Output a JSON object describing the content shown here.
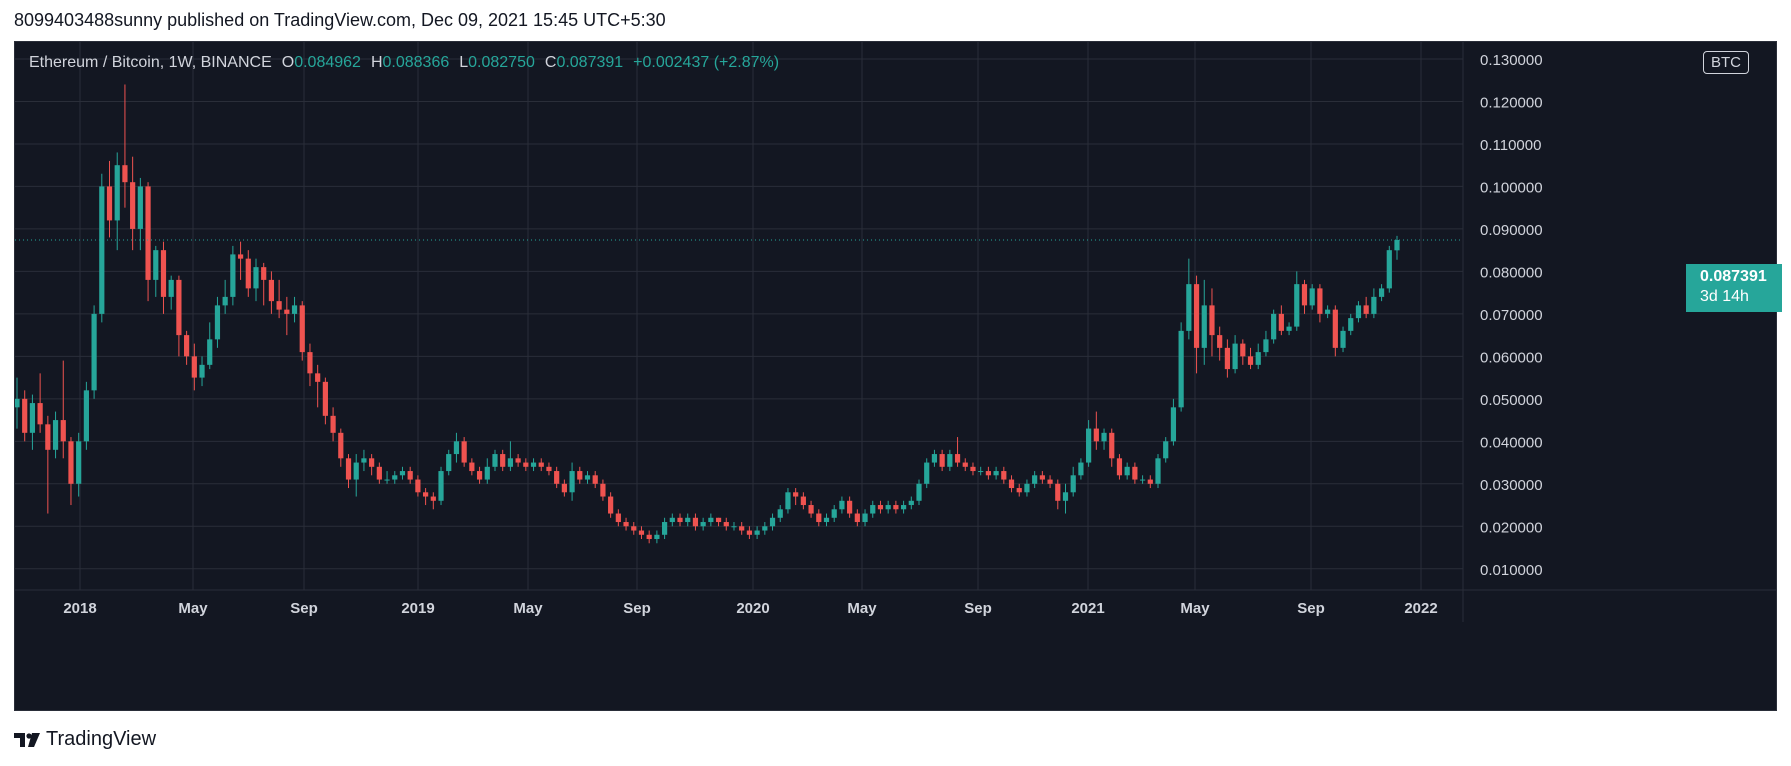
{
  "header": {
    "publish_line": "8099403488sunny published on TradingView.com, Dec 09, 2021 15:45 UTC+5:30"
  },
  "legend": {
    "symbol": "Ethereum / Bitcoin, 1W, BINANCE",
    "o_label": "O",
    "o_value": "0.084962",
    "h_label": "H",
    "h_value": "0.088366",
    "l_label": "L",
    "l_value": "0.082750",
    "c_label": "C",
    "c_value": "0.087391",
    "change": "+0.002437 (+2.87%)"
  },
  "currency_button": "BTC",
  "price_tag": {
    "price": "0.087391",
    "countdown": "3d 14h"
  },
  "footer": {
    "brand": "TradingView"
  },
  "colors": {
    "background": "#131722",
    "grid": "#2a2e39",
    "up": "#26a69a",
    "down": "#ef5350",
    "text": "#d1d4dc"
  },
  "chart_data": {
    "type": "candlestick",
    "title": "Ethereum / Bitcoin, 1W, BINANCE",
    "x_tick_labels": [
      "2018",
      "May",
      "Sep",
      "2019",
      "May",
      "Sep",
      "2020",
      "May",
      "Sep",
      "2021",
      "May",
      "Sep",
      "2022"
    ],
    "y_tick_labels": [
      "0.010000",
      "0.020000",
      "0.030000",
      "0.040000",
      "0.050000",
      "0.060000",
      "0.070000",
      "0.080000",
      "0.090000",
      "0.100000",
      "0.110000",
      "0.120000",
      "0.130000"
    ],
    "ylim": [
      0.005,
      0.134
    ],
    "last_price": 0.087391,
    "grid": true,
    "series": [
      {
        "interval": "1W",
        "points": [
          [
            0.048,
            0.05,
            0.043,
            0.055
          ],
          [
            0.05,
            0.042,
            0.04,
            0.052
          ],
          [
            0.042,
            0.049,
            0.038,
            0.051
          ],
          [
            0.049,
            0.044,
            0.042,
            0.056
          ],
          [
            0.044,
            0.038,
            0.023,
            0.046
          ],
          [
            0.038,
            0.045,
            0.036,
            0.047
          ],
          [
            0.045,
            0.04,
            0.036,
            0.059
          ],
          [
            0.04,
            0.03,
            0.025,
            0.041
          ],
          [
            0.03,
            0.04,
            0.027,
            0.042
          ],
          [
            0.04,
            0.052,
            0.038,
            0.054
          ],
          [
            0.052,
            0.07,
            0.05,
            0.072
          ],
          [
            0.07,
            0.1,
            0.068,
            0.103
          ],
          [
            0.1,
            0.092,
            0.088,
            0.106
          ],
          [
            0.092,
            0.105,
            0.085,
            0.108
          ],
          [
            0.105,
            0.101,
            0.095,
            0.124
          ],
          [
            0.101,
            0.09,
            0.085,
            0.107
          ],
          [
            0.09,
            0.1,
            0.085,
            0.102
          ],
          [
            0.1,
            0.078,
            0.073,
            0.101
          ],
          [
            0.078,
            0.085,
            0.074,
            0.086
          ],
          [
            0.085,
            0.074,
            0.07,
            0.087
          ],
          [
            0.074,
            0.078,
            0.071,
            0.079
          ],
          [
            0.078,
            0.065,
            0.06,
            0.079
          ],
          [
            0.065,
            0.06,
            0.058,
            0.066
          ],
          [
            0.06,
            0.055,
            0.052,
            0.063
          ],
          [
            0.055,
            0.058,
            0.053,
            0.06
          ],
          [
            0.058,
            0.064,
            0.057,
            0.068
          ],
          [
            0.064,
            0.072,
            0.062,
            0.074
          ],
          [
            0.072,
            0.074,
            0.07,
            0.078
          ],
          [
            0.074,
            0.084,
            0.072,
            0.086
          ],
          [
            0.084,
            0.083,
            0.078,
            0.087
          ],
          [
            0.083,
            0.076,
            0.074,
            0.085
          ],
          [
            0.076,
            0.081,
            0.073,
            0.083
          ],
          [
            0.081,
            0.078,
            0.072,
            0.082
          ],
          [
            0.078,
            0.073,
            0.07,
            0.08
          ],
          [
            0.073,
            0.071,
            0.069,
            0.078
          ],
          [
            0.071,
            0.07,
            0.065,
            0.074
          ],
          [
            0.07,
            0.072,
            0.068,
            0.074
          ],
          [
            0.072,
            0.061,
            0.059,
            0.073
          ],
          [
            0.061,
            0.056,
            0.053,
            0.063
          ],
          [
            0.056,
            0.054,
            0.048,
            0.058
          ],
          [
            0.054,
            0.046,
            0.044,
            0.055
          ],
          [
            0.046,
            0.042,
            0.04,
            0.048
          ],
          [
            0.042,
            0.036,
            0.034,
            0.043
          ],
          [
            0.036,
            0.031,
            0.029,
            0.037
          ],
          [
            0.031,
            0.035,
            0.027,
            0.037
          ],
          [
            0.035,
            0.036,
            0.033,
            0.038
          ],
          [
            0.036,
            0.034,
            0.032,
            0.037
          ],
          [
            0.034,
            0.031,
            0.03,
            0.035
          ],
          [
            0.031,
            0.031,
            0.03,
            0.033
          ],
          [
            0.031,
            0.032,
            0.03,
            0.033
          ],
          [
            0.032,
            0.033,
            0.031,
            0.034
          ],
          [
            0.033,
            0.031,
            0.03,
            0.034
          ],
          [
            0.031,
            0.028,
            0.027,
            0.032
          ],
          [
            0.028,
            0.027,
            0.025,
            0.029
          ],
          [
            0.027,
            0.026,
            0.024,
            0.028
          ],
          [
            0.026,
            0.033,
            0.025,
            0.034
          ],
          [
            0.033,
            0.037,
            0.032,
            0.038
          ],
          [
            0.037,
            0.04,
            0.035,
            0.042
          ],
          [
            0.04,
            0.035,
            0.034,
            0.041
          ],
          [
            0.035,
            0.033,
            0.032,
            0.036
          ],
          [
            0.033,
            0.031,
            0.03,
            0.034
          ],
          [
            0.031,
            0.034,
            0.03,
            0.036
          ],
          [
            0.034,
            0.037,
            0.033,
            0.038
          ],
          [
            0.037,
            0.034,
            0.033,
            0.038
          ],
          [
            0.034,
            0.036,
            0.033,
            0.04
          ],
          [
            0.036,
            0.035,
            0.034,
            0.037
          ],
          [
            0.035,
            0.034,
            0.033,
            0.036
          ],
          [
            0.034,
            0.035,
            0.033,
            0.036
          ],
          [
            0.035,
            0.034,
            0.033,
            0.036
          ],
          [
            0.034,
            0.033,
            0.032,
            0.035
          ],
          [
            0.033,
            0.03,
            0.029,
            0.034
          ],
          [
            0.03,
            0.028,
            0.027,
            0.031
          ],
          [
            0.028,
            0.033,
            0.026,
            0.035
          ],
          [
            0.033,
            0.031,
            0.03,
            0.034
          ],
          [
            0.031,
            0.032,
            0.03,
            0.033
          ],
          [
            0.032,
            0.03,
            0.029,
            0.033
          ],
          [
            0.03,
            0.027,
            0.026,
            0.031
          ],
          [
            0.027,
            0.023,
            0.022,
            0.028
          ],
          [
            0.023,
            0.021,
            0.02,
            0.024
          ],
          [
            0.021,
            0.02,
            0.019,
            0.022
          ],
          [
            0.02,
            0.019,
            0.018,
            0.021
          ],
          [
            0.019,
            0.018,
            0.017,
            0.02
          ],
          [
            0.018,
            0.017,
            0.016,
            0.019
          ],
          [
            0.017,
            0.018,
            0.016,
            0.019
          ],
          [
            0.018,
            0.021,
            0.017,
            0.022
          ],
          [
            0.021,
            0.022,
            0.02,
            0.023
          ],
          [
            0.022,
            0.021,
            0.02,
            0.023
          ],
          [
            0.021,
            0.022,
            0.02,
            0.023
          ],
          [
            0.022,
            0.02,
            0.019,
            0.023
          ],
          [
            0.02,
            0.021,
            0.019,
            0.022
          ],
          [
            0.021,
            0.022,
            0.02,
            0.023
          ],
          [
            0.022,
            0.021,
            0.02,
            0.022
          ],
          [
            0.021,
            0.02,
            0.019,
            0.022
          ],
          [
            0.02,
            0.02,
            0.019,
            0.021
          ],
          [
            0.02,
            0.019,
            0.018,
            0.021
          ],
          [
            0.019,
            0.018,
            0.017,
            0.02
          ],
          [
            0.018,
            0.019,
            0.017,
            0.02
          ],
          [
            0.019,
            0.02,
            0.018,
            0.021
          ],
          [
            0.02,
            0.022,
            0.019,
            0.023
          ],
          [
            0.022,
            0.024,
            0.021,
            0.025
          ],
          [
            0.024,
            0.028,
            0.023,
            0.029
          ],
          [
            0.028,
            0.027,
            0.025,
            0.029
          ],
          [
            0.027,
            0.025,
            0.024,
            0.028
          ],
          [
            0.025,
            0.023,
            0.022,
            0.026
          ],
          [
            0.023,
            0.021,
            0.02,
            0.024
          ],
          [
            0.021,
            0.022,
            0.02,
            0.023
          ],
          [
            0.022,
            0.024,
            0.021,
            0.025
          ],
          [
            0.024,
            0.026,
            0.023,
            0.027
          ],
          [
            0.026,
            0.023,
            0.022,
            0.027
          ],
          [
            0.023,
            0.021,
            0.02,
            0.024
          ],
          [
            0.021,
            0.023,
            0.02,
            0.024
          ],
          [
            0.023,
            0.025,
            0.022,
            0.026
          ],
          [
            0.025,
            0.024,
            0.023,
            0.026
          ],
          [
            0.024,
            0.025,
            0.023,
            0.026
          ],
          [
            0.025,
            0.024,
            0.023,
            0.026
          ],
          [
            0.024,
            0.025,
            0.023,
            0.026
          ],
          [
            0.025,
            0.026,
            0.024,
            0.027
          ],
          [
            0.026,
            0.03,
            0.025,
            0.031
          ],
          [
            0.03,
            0.035,
            0.029,
            0.036
          ],
          [
            0.035,
            0.037,
            0.034,
            0.038
          ],
          [
            0.037,
            0.034,
            0.033,
            0.038
          ],
          [
            0.034,
            0.037,
            0.033,
            0.038
          ],
          [
            0.037,
            0.035,
            0.034,
            0.041
          ],
          [
            0.035,
            0.034,
            0.033,
            0.036
          ],
          [
            0.034,
            0.033,
            0.032,
            0.035
          ],
          [
            0.033,
            0.033,
            0.032,
            0.034
          ],
          [
            0.033,
            0.032,
            0.031,
            0.034
          ],
          [
            0.032,
            0.033,
            0.031,
            0.034
          ],
          [
            0.033,
            0.031,
            0.03,
            0.034
          ],
          [
            0.031,
            0.029,
            0.028,
            0.032
          ],
          [
            0.029,
            0.028,
            0.027,
            0.03
          ],
          [
            0.028,
            0.03,
            0.027,
            0.031
          ],
          [
            0.03,
            0.032,
            0.029,
            0.033
          ],
          [
            0.032,
            0.031,
            0.03,
            0.033
          ],
          [
            0.031,
            0.03,
            0.029,
            0.032
          ],
          [
            0.03,
            0.026,
            0.024,
            0.031
          ],
          [
            0.026,
            0.028,
            0.023,
            0.03
          ],
          [
            0.028,
            0.032,
            0.027,
            0.034
          ],
          [
            0.032,
            0.035,
            0.031,
            0.036
          ],
          [
            0.035,
            0.043,
            0.034,
            0.045
          ],
          [
            0.043,
            0.04,
            0.038,
            0.047
          ],
          [
            0.04,
            0.042,
            0.038,
            0.043
          ],
          [
            0.042,
            0.036,
            0.034,
            0.043
          ],
          [
            0.036,
            0.032,
            0.031,
            0.037
          ],
          [
            0.032,
            0.034,
            0.031,
            0.035
          ],
          [
            0.034,
            0.031,
            0.03,
            0.035
          ],
          [
            0.031,
            0.031,
            0.03,
            0.032
          ],
          [
            0.031,
            0.03,
            0.029,
            0.032
          ],
          [
            0.03,
            0.036,
            0.029,
            0.037
          ],
          [
            0.036,
            0.04,
            0.035,
            0.041
          ],
          [
            0.04,
            0.048,
            0.039,
            0.05
          ],
          [
            0.048,
            0.066,
            0.047,
            0.068
          ],
          [
            0.066,
            0.077,
            0.064,
            0.083
          ],
          [
            0.077,
            0.062,
            0.056,
            0.079
          ],
          [
            0.062,
            0.072,
            0.058,
            0.078
          ],
          [
            0.072,
            0.065,
            0.06,
            0.076
          ],
          [
            0.065,
            0.062,
            0.059,
            0.067
          ],
          [
            0.062,
            0.057,
            0.055,
            0.064
          ],
          [
            0.057,
            0.063,
            0.056,
            0.065
          ],
          [
            0.063,
            0.06,
            0.058,
            0.064
          ],
          [
            0.06,
            0.058,
            0.057,
            0.062
          ],
          [
            0.058,
            0.061,
            0.057,
            0.063
          ],
          [
            0.061,
            0.064,
            0.06,
            0.066
          ],
          [
            0.064,
            0.07,
            0.063,
            0.071
          ],
          [
            0.07,
            0.066,
            0.065,
            0.072
          ],
          [
            0.066,
            0.067,
            0.065,
            0.068
          ],
          [
            0.067,
            0.077,
            0.066,
            0.08
          ],
          [
            0.077,
            0.072,
            0.07,
            0.078
          ],
          [
            0.072,
            0.076,
            0.071,
            0.077
          ],
          [
            0.076,
            0.07,
            0.068,
            0.077
          ],
          [
            0.07,
            0.071,
            0.069,
            0.072
          ],
          [
            0.071,
            0.062,
            0.06,
            0.072
          ],
          [
            0.062,
            0.066,
            0.061,
            0.067
          ],
          [
            0.066,
            0.069,
            0.065,
            0.07
          ],
          [
            0.069,
            0.072,
            0.068,
            0.073
          ],
          [
            0.072,
            0.07,
            0.069,
            0.074
          ],
          [
            0.07,
            0.074,
            0.069,
            0.076
          ],
          [
            0.074,
            0.076,
            0.073,
            0.077
          ],
          [
            0.076,
            0.085,
            0.075,
            0.086
          ],
          [
            0.084962,
            0.087391,
            0.08275,
            0.088366
          ]
        ]
      }
    ]
  }
}
